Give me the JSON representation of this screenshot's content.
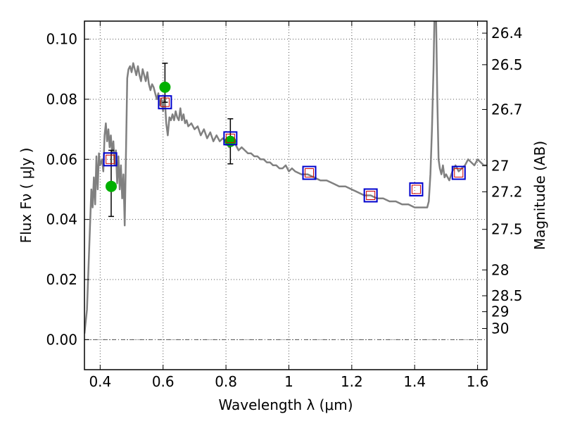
{
  "chart_data": {
    "type": "line",
    "title": "",
    "xlabel": "Wavelength  λ (μm)",
    "ylabel": "Flux  Fν  ( μJy )",
    "y2label": "Magnitude (AB)",
    "xlim": [
      0.35,
      1.63
    ],
    "ylim": [
      -0.01,
      0.106
    ],
    "grid": true,
    "legend": "none",
    "x_ticks": [
      {
        "value": 0.4,
        "label": "0.4"
      },
      {
        "value": 0.6,
        "label": "0.6"
      },
      {
        "value": 0.8,
        "label": "0.8"
      },
      {
        "value": 1.0,
        "label": "1"
      },
      {
        "value": 1.2,
        "label": "1.2"
      },
      {
        "value": 1.4,
        "label": "1.4"
      },
      {
        "value": 1.6,
        "label": "1.6"
      }
    ],
    "y_ticks": [
      {
        "value": 0.0,
        "label": "0.00"
      },
      {
        "value": 0.02,
        "label": "0.02"
      },
      {
        "value": 0.04,
        "label": "0.04"
      },
      {
        "value": 0.06,
        "label": "0.06"
      },
      {
        "value": 0.08,
        "label": "0.08"
      },
      {
        "value": 0.1,
        "label": "0.10"
      }
    ],
    "y2_ticks": [
      {
        "flux": 0.102,
        "label": "26.4"
      },
      {
        "flux": 0.0915,
        "label": "26.5"
      },
      {
        "flux": 0.0766,
        "label": "26.7"
      },
      {
        "flux": 0.0579,
        "label": "27"
      },
      {
        "flux": 0.0492,
        "label": "27.2"
      },
      {
        "flux": 0.0367,
        "label": "27.5"
      },
      {
        "flux": 0.0232,
        "label": "28"
      },
      {
        "flux": 0.0146,
        "label": "28.5"
      },
      {
        "flux": 0.0093,
        "label": "29"
      },
      {
        "flux": 0.0037,
        "label": "30"
      }
    ],
    "colors": {
      "model": "#808080",
      "observed": "#00b000",
      "synthetic_box": "#0000cc",
      "synthetic_inner": "#cc0000",
      "grid": "#555555",
      "zero_line": "#555555"
    },
    "model_spectrum": [
      [
        0.35,
        0.002
      ],
      [
        0.358,
        0.01
      ],
      [
        0.365,
        0.03
      ],
      [
        0.372,
        0.05
      ],
      [
        0.376,
        0.044
      ],
      [
        0.38,
        0.054
      ],
      [
        0.384,
        0.045
      ],
      [
        0.388,
        0.061
      ],
      [
        0.392,
        0.05
      ],
      [
        0.396,
        0.062
      ],
      [
        0.4,
        0.058
      ],
      [
        0.406,
        0.06
      ],
      [
        0.41,
        0.056
      ],
      [
        0.414,
        0.068
      ],
      [
        0.418,
        0.072
      ],
      [
        0.422,
        0.066
      ],
      [
        0.426,
        0.07
      ],
      [
        0.43,
        0.064
      ],
      [
        0.434,
        0.068
      ],
      [
        0.438,
        0.062
      ],
      [
        0.442,
        0.066
      ],
      [
        0.446,
        0.058
      ],
      [
        0.45,
        0.063
      ],
      [
        0.454,
        0.052
      ],
      [
        0.458,
        0.061
      ],
      [
        0.462,
        0.05
      ],
      [
        0.466,
        0.058
      ],
      [
        0.47,
        0.047
      ],
      [
        0.474,
        0.055
      ],
      [
        0.478,
        0.038
      ],
      [
        0.482,
        0.062
      ],
      [
        0.486,
        0.087
      ],
      [
        0.49,
        0.09
      ],
      [
        0.495,
        0.091
      ],
      [
        0.5,
        0.089
      ],
      [
        0.505,
        0.092
      ],
      [
        0.51,
        0.09
      ],
      [
        0.515,
        0.088
      ],
      [
        0.52,
        0.091
      ],
      [
        0.525,
        0.088
      ],
      [
        0.53,
        0.086
      ],
      [
        0.535,
        0.09
      ],
      [
        0.54,
        0.088
      ],
      [
        0.545,
        0.086
      ],
      [
        0.55,
        0.089
      ],
      [
        0.555,
        0.085
      ],
      [
        0.56,
        0.083
      ],
      [
        0.565,
        0.085
      ],
      [
        0.57,
        0.084
      ],
      [
        0.575,
        0.082
      ],
      [
        0.58,
        0.08
      ],
      [
        0.585,
        0.082
      ],
      [
        0.59,
        0.078
      ],
      [
        0.595,
        0.08
      ],
      [
        0.6,
        0.076
      ],
      [
        0.605,
        0.081
      ],
      [
        0.61,
        0.072
      ],
      [
        0.615,
        0.068
      ],
      [
        0.62,
        0.074
      ],
      [
        0.625,
        0.073
      ],
      [
        0.63,
        0.075
      ],
      [
        0.635,
        0.073
      ],
      [
        0.64,
        0.076
      ],
      [
        0.645,
        0.074
      ],
      [
        0.65,
        0.073
      ],
      [
        0.655,
        0.077
      ],
      [
        0.66,
        0.073
      ],
      [
        0.665,
        0.075
      ],
      [
        0.67,
        0.072
      ],
      [
        0.675,
        0.073
      ],
      [
        0.68,
        0.071
      ],
      [
        0.69,
        0.072
      ],
      [
        0.7,
        0.07
      ],
      [
        0.71,
        0.071
      ],
      [
        0.72,
        0.068
      ],
      [
        0.73,
        0.07
      ],
      [
        0.74,
        0.067
      ],
      [
        0.75,
        0.069
      ],
      [
        0.76,
        0.066
      ],
      [
        0.77,
        0.068
      ],
      [
        0.78,
        0.066
      ],
      [
        0.79,
        0.067
      ],
      [
        0.8,
        0.066
      ],
      [
        0.81,
        0.064
      ],
      [
        0.82,
        0.066
      ],
      [
        0.83,
        0.065
      ],
      [
        0.84,
        0.063
      ],
      [
        0.85,
        0.064
      ],
      [
        0.86,
        0.063
      ],
      [
        0.87,
        0.062
      ],
      [
        0.88,
        0.062
      ],
      [
        0.89,
        0.061
      ],
      [
        0.9,
        0.061
      ],
      [
        0.91,
        0.06
      ],
      [
        0.92,
        0.06
      ],
      [
        0.93,
        0.059
      ],
      [
        0.94,
        0.059
      ],
      [
        0.95,
        0.058
      ],
      [
        0.96,
        0.058
      ],
      [
        0.97,
        0.057
      ],
      [
        0.98,
        0.057
      ],
      [
        0.99,
        0.058
      ],
      [
        1.0,
        0.056
      ],
      [
        1.01,
        0.057
      ],
      [
        1.02,
        0.056
      ],
      [
        1.04,
        0.055
      ],
      [
        1.06,
        0.055
      ],
      [
        1.08,
        0.054
      ],
      [
        1.1,
        0.053
      ],
      [
        1.12,
        0.053
      ],
      [
        1.14,
        0.052
      ],
      [
        1.16,
        0.051
      ],
      [
        1.18,
        0.051
      ],
      [
        1.2,
        0.05
      ],
      [
        1.22,
        0.049
      ],
      [
        1.24,
        0.048
      ],
      [
        1.26,
        0.048
      ],
      [
        1.28,
        0.047
      ],
      [
        1.3,
        0.047
      ],
      [
        1.32,
        0.046
      ],
      [
        1.34,
        0.046
      ],
      [
        1.36,
        0.045
      ],
      [
        1.38,
        0.045
      ],
      [
        1.4,
        0.044
      ],
      [
        1.42,
        0.044
      ],
      [
        1.44,
        0.044
      ],
      [
        1.445,
        0.046
      ],
      [
        1.45,
        0.055
      ],
      [
        1.455,
        0.07
      ],
      [
        1.46,
        0.09
      ],
      [
        1.463,
        0.108
      ],
      [
        1.468,
        0.108
      ],
      [
        1.472,
        0.08
      ],
      [
        1.476,
        0.06
      ],
      [
        1.48,
        0.057
      ],
      [
        1.485,
        0.055
      ],
      [
        1.49,
        0.058
      ],
      [
        1.495,
        0.054
      ],
      [
        1.5,
        0.055
      ],
      [
        1.51,
        0.053
      ],
      [
        1.52,
        0.056
      ],
      [
        1.53,
        0.058
      ],
      [
        1.54,
        0.056
      ],
      [
        1.55,
        0.057
      ],
      [
        1.56,
        0.058
      ],
      [
        1.57,
        0.06
      ],
      [
        1.58,
        0.059
      ],
      [
        1.59,
        0.058
      ],
      [
        1.6,
        0.06
      ],
      [
        1.61,
        0.059
      ],
      [
        1.62,
        0.058
      ],
      [
        1.63,
        0.058
      ]
    ],
    "observed_points": [
      {
        "x": 0.435,
        "y": 0.051,
        "err_low": 0.041,
        "err_high": 0.063
      },
      {
        "x": 0.606,
        "y": 0.084,
        "err_low": 0.079,
        "err_high": 0.092
      },
      {
        "x": 0.814,
        "y": 0.066,
        "err_low": 0.0585,
        "err_high": 0.0735
      }
    ],
    "synthetic_points": [
      {
        "x": 0.432,
        "y": 0.06
      },
      {
        "x": 0.606,
        "y": 0.079
      },
      {
        "x": 0.814,
        "y": 0.067
      },
      {
        "x": 1.065,
        "y": 0.0555
      },
      {
        "x": 1.26,
        "y": 0.048
      },
      {
        "x": 1.405,
        "y": 0.05
      },
      {
        "x": 1.54,
        "y": 0.0555
      }
    ]
  }
}
